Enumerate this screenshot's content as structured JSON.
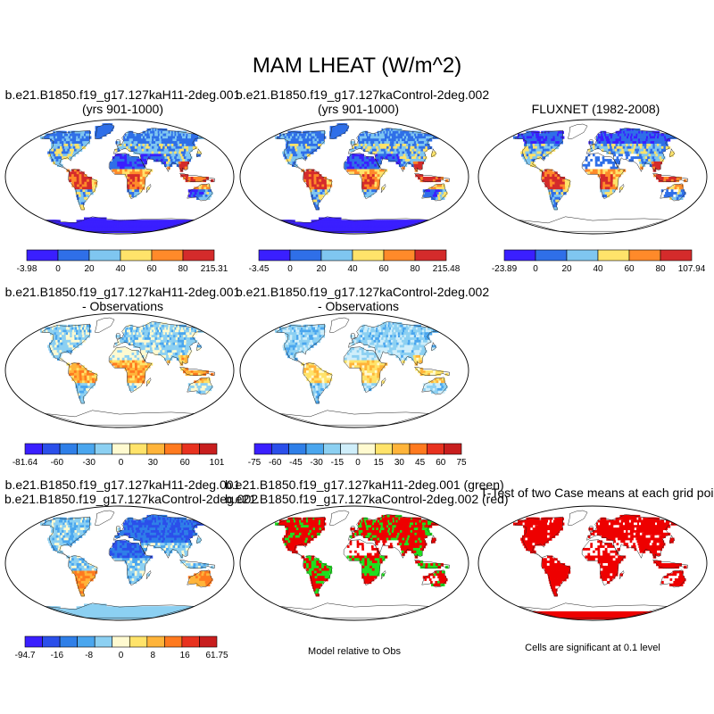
{
  "title": "MAM LHEAT (W/m^2)",
  "chart_data": [
    {
      "type": "heatmap",
      "name": "panel-1",
      "title_lines": [
        "b.e21.B1850.f19_g17.127kaH11-2deg.001",
        "(yrs 901-1000)"
      ],
      "colorbar": {
        "colors": [
          "#3a1fff",
          "#2f6fe8",
          "#7fc6f0",
          "#ffe36a",
          "#ff8a2a",
          "#d42b2b"
        ],
        "labels": [
          "-3.98",
          "0",
          "20",
          "40",
          "60",
          "80",
          "215.31"
        ]
      }
    },
    {
      "type": "heatmap",
      "name": "panel-2",
      "title_lines": [
        "b.e21.B1850.f19_g17.127kaControl-2deg.002",
        "(yrs 901-1000)"
      ],
      "colorbar": {
        "colors": [
          "#3a1fff",
          "#2f6fe8",
          "#7fc6f0",
          "#ffe36a",
          "#ff8a2a",
          "#d42b2b"
        ],
        "labels": [
          "-3.45",
          "0",
          "20",
          "40",
          "60",
          "80",
          "215.48"
        ]
      }
    },
    {
      "type": "heatmap",
      "name": "panel-3",
      "title_lines": [
        "FLUXNET (1982-2008)"
      ],
      "colorbar": {
        "colors": [
          "#3a1fff",
          "#2f6fe8",
          "#7fc6f0",
          "#ffe36a",
          "#ff8a2a",
          "#d42b2b"
        ],
        "labels": [
          "-23.89",
          "0",
          "20",
          "40",
          "60",
          "80",
          "107.94"
        ]
      }
    },
    {
      "type": "heatmap",
      "name": "panel-4",
      "title_lines": [
        "b.e21.B1850.f19_g17.127kaH11-2deg.001",
        "- Observations"
      ],
      "colorbar": {
        "colors": [
          "#3a1fff",
          "#2b4fea",
          "#2f7fe8",
          "#4aa6ee",
          "#8cd0f2",
          "#fffad0",
          "#ffe36a",
          "#ffb43a",
          "#ff7a1f",
          "#e8321f",
          "#c81e1e"
        ],
        "labels": [
          "-81.64",
          "-60",
          "-30",
          "0",
          "30",
          "60",
          "101"
        ]
      }
    },
    {
      "type": "heatmap",
      "name": "panel-5",
      "title_lines": [
        "b.e21.B1850.f19_g17.127kaControl-2deg.002",
        "- Observations"
      ],
      "colorbar": {
        "colors": [
          "#3a1fff",
          "#2b4fea",
          "#2f7fe8",
          "#4aa6ee",
          "#8cd0f2",
          "#cfeefa",
          "#fffad0",
          "#ffe36a",
          "#ffb43a",
          "#ff7a1f",
          "#e8321f",
          "#c81e1e"
        ],
        "labels": [
          "-75",
          "-60",
          "-45",
          "-30",
          "-15",
          "0",
          "15",
          "30",
          "45",
          "60",
          "75"
        ]
      }
    },
    {
      "type": "heatmap",
      "name": "panel-7",
      "title_lines": [
        "b.e21.B1850.f19_g17.127kaH11-2deg.001",
        "b.e21.B1850.f19_g17.127kaControl-2deg.002"
      ],
      "colorbar": {
        "colors": [
          "#3a1fff",
          "#2b4fea",
          "#2f7fe8",
          "#4aa6ee",
          "#8cd0f2",
          "#fffad0",
          "#ffe36a",
          "#ffb43a",
          "#ff7a1f",
          "#e8321f",
          "#c81e1e"
        ],
        "labels": [
          "-94.7",
          "-16",
          "-8",
          "0",
          "8",
          "16",
          "61.75"
        ]
      }
    },
    {
      "type": "heatmap",
      "name": "panel-8",
      "title_lines": [
        "b.e21.B1850.f19_g17.127kaH11-2deg.001 (green)",
        "b.e21.B1850.f19_g17.127kaControl-2deg.002 (red)"
      ],
      "colors": [
        "#1fe01f",
        "#ee0000"
      ]
    },
    {
      "type": "heatmap",
      "name": "panel-9",
      "title_lines": [
        "T-Test of two Case means at each grid point"
      ],
      "colors": [
        "#ee0000"
      ]
    }
  ],
  "notes": {
    "model_relative": "Model relative to Obs",
    "significance": "Cells are significant at 0.1 level"
  }
}
